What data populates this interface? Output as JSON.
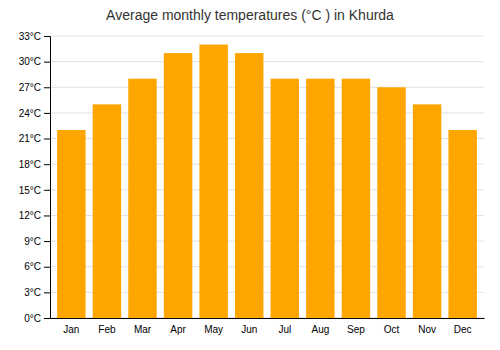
{
  "chart_data": {
    "type": "bar",
    "title": "Average monthly temperatures (°C ) in Khurda",
    "categories": [
      "Jan",
      "Feb",
      "Mar",
      "Apr",
      "May",
      "Jun",
      "Jul",
      "Aug",
      "Sep",
      "Oct",
      "Nov",
      "Dec"
    ],
    "values": [
      22,
      25,
      28,
      31,
      32,
      31,
      28,
      28,
      28,
      27,
      25,
      22
    ],
    "color": "#FFA500",
    "ylim": [
      0,
      33
    ],
    "yticks": [
      {
        "value": 0,
        "label": "0°C"
      },
      {
        "value": 3,
        "label": "3°C"
      },
      {
        "value": 6,
        "label": "6°C"
      },
      {
        "value": 9,
        "label": "9°C"
      },
      {
        "value": 12,
        "label": "12°C"
      },
      {
        "value": 15,
        "label": "15°C"
      },
      {
        "value": 18,
        "label": "18°C"
      },
      {
        "value": 21,
        "label": "21°C"
      },
      {
        "value": 24,
        "label": "24°C"
      },
      {
        "value": 27,
        "label": "27°C"
      },
      {
        "value": 30,
        "label": "30°C"
      },
      {
        "value": 33,
        "label": "33°C"
      }
    ],
    "grid": true
  }
}
